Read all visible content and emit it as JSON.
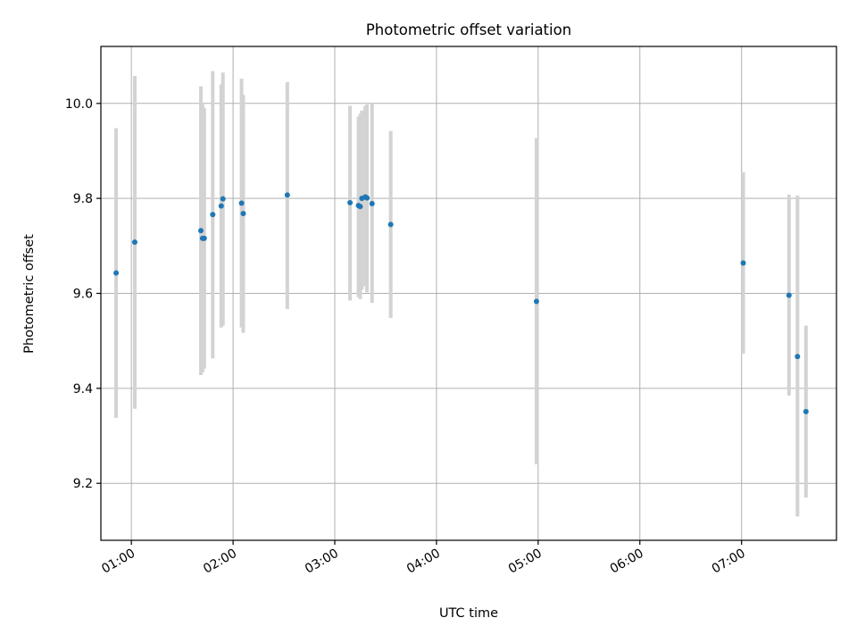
{
  "chart_data": {
    "type": "scatter",
    "title": "Photometric offset variation",
    "xlabel": "UTC time",
    "ylabel": "Photometric offset",
    "xlim": [
      "00:42",
      "07:56"
    ],
    "ylim": [
      9.08,
      10.12
    ],
    "x_ticks": [
      "01:00",
      "02:00",
      "03:00",
      "04:00",
      "05:00",
      "06:00",
      "07:00"
    ],
    "y_ticks": [
      "9.2",
      "9.4",
      "9.6",
      "9.8",
      "10.0"
    ],
    "grid": true,
    "points": [
      {
        "time": "00:51",
        "y": 9.643,
        "ylow": 9.338,
        "yhigh": 9.948
      },
      {
        "time": "01:02",
        "y": 9.708,
        "ylow": 9.357,
        "yhigh": 10.058
      },
      {
        "time": "01:41",
        "y": 9.732,
        "ylow": 9.428,
        "yhigh": 10.036
      },
      {
        "time": "01:42",
        "y": 9.716,
        "ylow": 9.434,
        "yhigh": 9.998
      },
      {
        "time": "01:43",
        "y": 9.716,
        "ylow": 9.442,
        "yhigh": 9.99
      },
      {
        "time": "01:48",
        "y": 9.766,
        "ylow": 9.463,
        "yhigh": 10.068
      },
      {
        "time": "01:53",
        "y": 9.784,
        "ylow": 9.528,
        "yhigh": 10.04
      },
      {
        "time": "01:54",
        "y": 9.799,
        "ylow": 9.532,
        "yhigh": 10.065
      },
      {
        "time": "02:05",
        "y": 9.79,
        "ylow": 9.528,
        "yhigh": 10.052
      },
      {
        "time": "02:06",
        "y": 9.768,
        "ylow": 9.517,
        "yhigh": 10.018
      },
      {
        "time": "02:32",
        "y": 9.807,
        "ylow": 9.567,
        "yhigh": 10.045
      },
      {
        "time": "03:09",
        "y": 9.791,
        "ylow": 9.585,
        "yhigh": 9.995
      },
      {
        "time": "03:14",
        "y": 9.785,
        "ylow": 9.592,
        "yhigh": 9.972
      },
      {
        "time": "03:15",
        "y": 9.783,
        "ylow": 9.588,
        "yhigh": 9.978
      },
      {
        "time": "03:16",
        "y": 9.8,
        "ylow": 9.608,
        "yhigh": 9.985
      },
      {
        "time": "03:18",
        "y": 9.803,
        "ylow": 9.615,
        "yhigh": 9.995
      },
      {
        "time": "03:19",
        "y": 9.801,
        "ylow": 9.602,
        "yhigh": 9.998
      },
      {
        "time": "03:22",
        "y": 9.789,
        "ylow": 9.58,
        "yhigh": 10.0
      },
      {
        "time": "03:33",
        "y": 9.745,
        "ylow": 9.548,
        "yhigh": 9.942
      },
      {
        "time": "04:59",
        "y": 9.583,
        "ylow": 9.24,
        "yhigh": 9.927
      },
      {
        "time": "07:01",
        "y": 9.664,
        "ylow": 9.473,
        "yhigh": 9.855
      },
      {
        "time": "07:28",
        "y": 9.596,
        "ylow": 9.385,
        "yhigh": 9.808
      },
      {
        "time": "07:33",
        "y": 9.467,
        "ylow": 9.13,
        "yhigh": 9.806
      },
      {
        "time": "07:38",
        "y": 9.351,
        "ylow": 9.17,
        "yhigh": 9.532
      }
    ],
    "colors": {
      "point": "#1f77b4",
      "errorbar": "#d3d3d3",
      "grid": "#b0b0b0",
      "axes": "#000000"
    }
  }
}
